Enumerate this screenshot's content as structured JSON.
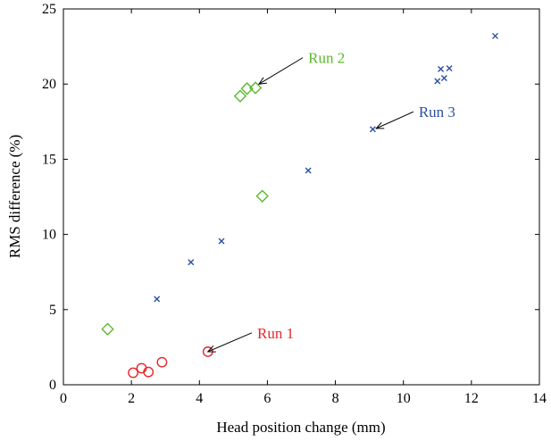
{
  "chart_data": {
    "type": "scatter",
    "xlabel": "Head position change (mm)",
    "ylabel": "RMS difference (%)",
    "xlim": [
      0,
      14
    ],
    "ylim": [
      0,
      25
    ],
    "xticks": [
      0,
      2,
      4,
      6,
      8,
      10,
      12,
      14
    ],
    "yticks": [
      0,
      5,
      10,
      15,
      20,
      25
    ],
    "xtick_labels": [
      "0",
      "2",
      "4",
      "6",
      "8",
      "10",
      "12",
      "14"
    ],
    "ytick_labels": [
      "0",
      "5",
      "10",
      "15",
      "20",
      "25"
    ],
    "grid": false,
    "series": [
      {
        "name": "Run 1",
        "marker": "circle",
        "color": "#e8262b",
        "points": [
          {
            "x": 2.05,
            "y": 0.8
          },
          {
            "x": 2.3,
            "y": 1.1
          },
          {
            "x": 2.5,
            "y": 0.85
          },
          {
            "x": 2.9,
            "y": 1.5
          },
          {
            "x": 4.25,
            "y": 2.2
          }
        ]
      },
      {
        "name": "Run 2",
        "marker": "diamond",
        "color": "#5cb82e",
        "points": [
          {
            "x": 1.3,
            "y": 3.7
          },
          {
            "x": 5.2,
            "y": 19.2
          },
          {
            "x": 5.4,
            "y": 19.7
          },
          {
            "x": 5.65,
            "y": 19.75
          },
          {
            "x": 5.85,
            "y": 12.55
          }
        ]
      },
      {
        "name": "Run 3",
        "marker": "x",
        "color": "#2b4fa3",
        "points": [
          {
            "x": 2.75,
            "y": 5.7
          },
          {
            "x": 3.75,
            "y": 8.15
          },
          {
            "x": 4.65,
            "y": 9.55
          },
          {
            "x": 7.2,
            "y": 14.25
          },
          {
            "x": 9.1,
            "y": 17.0
          },
          {
            "x": 11.0,
            "y": 20.2
          },
          {
            "x": 11.1,
            "y": 21.0
          },
          {
            "x": 11.2,
            "y": 20.4
          },
          {
            "x": 11.35,
            "y": 21.05
          },
          {
            "x": 12.7,
            "y": 23.2
          }
        ]
      }
    ],
    "annotations": [
      {
        "text": "Run 1",
        "series": "Run 1",
        "color": "#e8262b",
        "arrow_to": {
          "x": 4.25,
          "y": 2.2
        },
        "text_at": {
          "x": 5.7,
          "y": 3.1
        }
      },
      {
        "text": "Run 2",
        "series": "Run 2",
        "color": "#5cb82e",
        "arrow_to": {
          "x": 5.75,
          "y": 20.0
        },
        "text_at": {
          "x": 7.2,
          "y": 21.4
        }
      },
      {
        "text": "Run 3",
        "series": "Run 3",
        "color": "#2b4fa3",
        "arrow_to": {
          "x": 9.2,
          "y": 17.05
        },
        "text_at": {
          "x": 10.45,
          "y": 17.8
        }
      }
    ]
  }
}
